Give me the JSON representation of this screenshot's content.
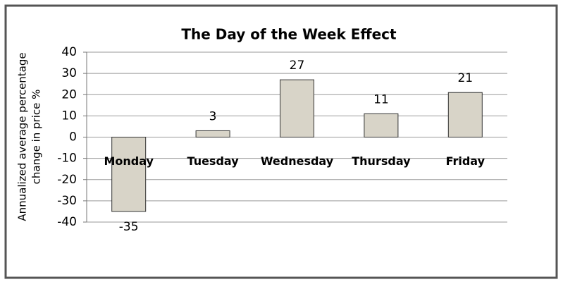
{
  "chart_data": {
    "type": "bar",
    "title": "The Day of the Week Effect",
    "ylabel": [
      "Annualized average percentage",
      "change in price %"
    ],
    "categories": [
      "Monday",
      "Tuesday",
      "Wednesday",
      "Thursday",
      "Friday"
    ],
    "values": [
      -35,
      3,
      27,
      11,
      21
    ],
    "color": "#d8d4c8",
    "ylim": [
      -40,
      40
    ],
    "yticks": [
      -40,
      -30,
      -20,
      -10,
      0,
      10,
      20,
      30,
      40
    ],
    "grid": true
  }
}
